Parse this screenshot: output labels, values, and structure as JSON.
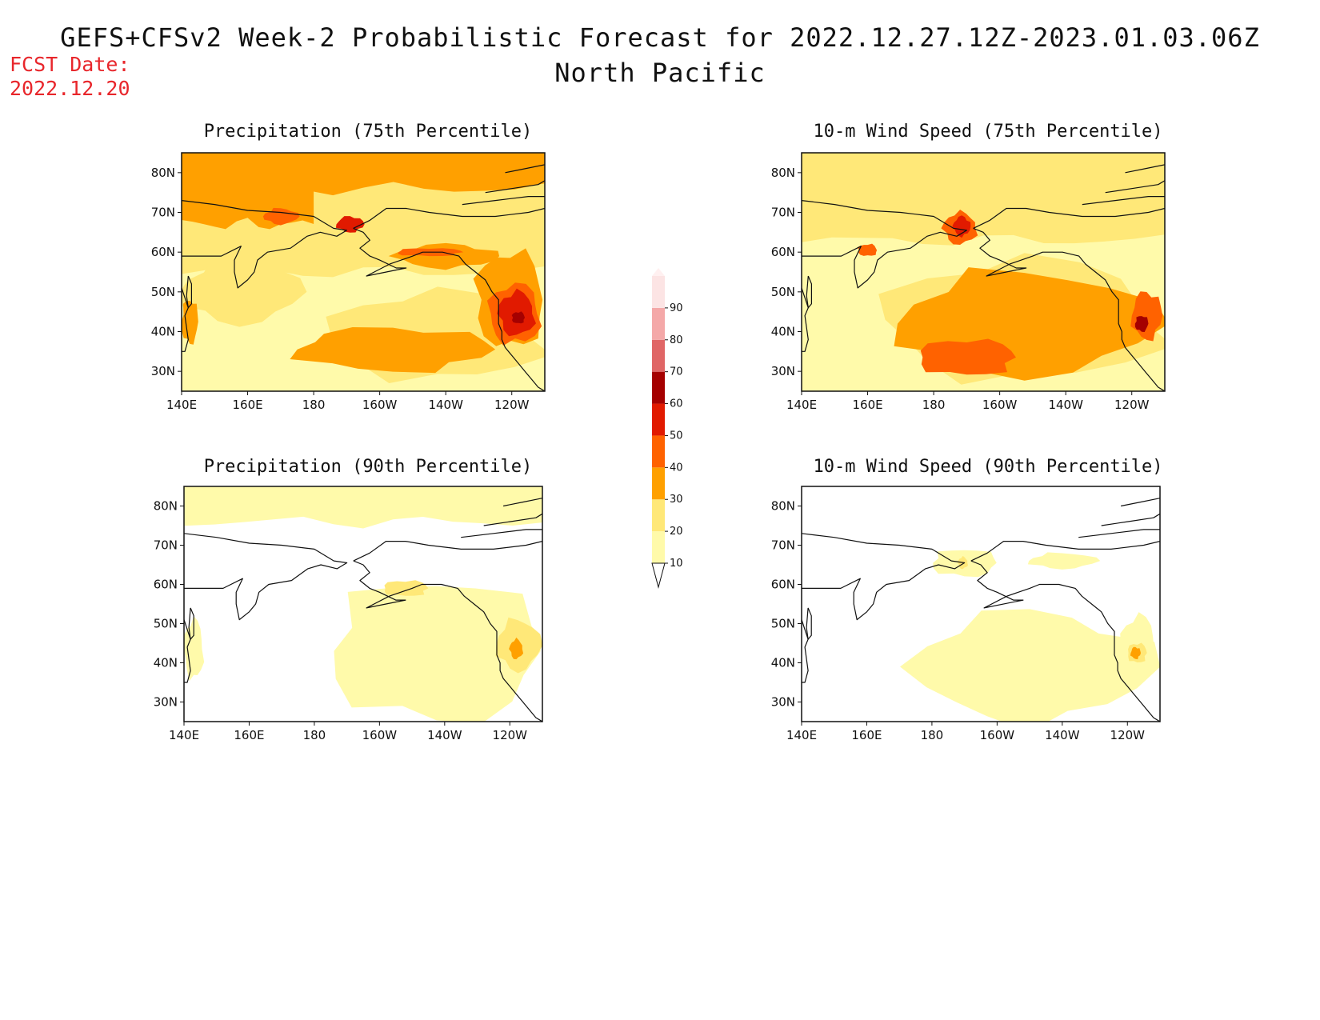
{
  "header": {
    "title": "GEFS+CFSv2 Week-2 Probabilistic Forecast for 2022.12.27.12Z-2023.01.03.06Z",
    "subtitle": "North Pacific",
    "fcst_label": "FCST Date:",
    "fcst_date": "2022.12.20"
  },
  "panels": [
    {
      "id": "precip75",
      "title": "Precipitation (75th Percentile)"
    },
    {
      "id": "wind75",
      "title": "10-m Wind Speed (75th Percentile)"
    },
    {
      "id": "precip90",
      "title": "Precipitation (90th Percentile)"
    },
    {
      "id": "wind90",
      "title": "10-m Wind Speed (90th Percentile)"
    }
  ],
  "axes": {
    "lon_ticks": [
      "140E",
      "160E",
      "180",
      "160W",
      "140W",
      "120W"
    ],
    "lat_ticks": [
      "80N",
      "70N",
      "60N",
      "50N",
      "40N",
      "30N"
    ],
    "lon_values": [
      140,
      160,
      180,
      200,
      220,
      240
    ],
    "lat_values": [
      80,
      70,
      60,
      50,
      40,
      30
    ],
    "lon_range": [
      140,
      250
    ],
    "lat_range": [
      25,
      85
    ]
  },
  "colorbar": {
    "levels": [
      "10",
      "20",
      "30",
      "40",
      "50",
      "60",
      "70",
      "80",
      "90"
    ],
    "colors": [
      "#fffaaa",
      "#ffe878",
      "#ffa000",
      "#ff6200",
      "#e11a00",
      "#a50000",
      "#e06666",
      "#f4a8a8",
      "#fce4e4"
    ]
  },
  "map_data": {
    "precip75": [
      {
        "level": 10,
        "shape": "base",
        "lon": [
          140,
          250
        ],
        "lat": [
          25,
          85
        ]
      },
      {
        "level": 20,
        "shape": "band",
        "lon": [
          140,
          250
        ],
        "lat": [
          55,
          85
        ]
      },
      {
        "level": 20,
        "shape": "blob",
        "lon": [
          185,
          250
        ],
        "lat": [
          28,
          50
        ]
      },
      {
        "level": 20,
        "shape": "blob",
        "lon": [
          140,
          175
        ],
        "lat": [
          42,
          58
        ]
      },
      {
        "level": 30,
        "shape": "band",
        "lon": [
          140,
          250
        ],
        "lat": [
          76,
          85
        ]
      },
      {
        "level": 30,
        "shape": "band",
        "lon": [
          140,
          180
        ],
        "lat": [
          67,
          78
        ]
      },
      {
        "level": 30,
        "shape": "blob",
        "lon": [
          175,
          233
        ],
        "lat": [
          30,
          41
        ]
      },
      {
        "level": 30,
        "shape": "blob",
        "lon": [
          229,
          250
        ],
        "lat": [
          36,
          60
        ]
      },
      {
        "level": 30,
        "shape": "blob",
        "lon": [
          205,
          235
        ],
        "lat": [
          56,
          62
        ]
      },
      {
        "level": 30,
        "shape": "blob",
        "lon": [
          140,
          145
        ],
        "lat": [
          37,
          48
        ]
      },
      {
        "level": 40,
        "shape": "blob",
        "lon": [
          233,
          249
        ],
        "lat": [
          37,
          52
        ]
      },
      {
        "level": 40,
        "shape": "blob",
        "lon": [
          165,
          175
        ],
        "lat": [
          67,
          71
        ]
      },
      {
        "level": 40,
        "shape": "blob",
        "lon": [
          205,
          225
        ],
        "lat": [
          59,
          61
        ]
      },
      {
        "level": 50,
        "shape": "blob",
        "lon": [
          236,
          247
        ],
        "lat": [
          39,
          50
        ]
      },
      {
        "level": 50,
        "shape": "blob",
        "lon": [
          187,
          195
        ],
        "lat": [
          65,
          69
        ]
      },
      {
        "level": 60,
        "shape": "blob",
        "lon": [
          240,
          244
        ],
        "lat": [
          42,
          45
        ]
      }
    ],
    "wind75": [
      {
        "level": 10,
        "shape": "base",
        "lon": [
          140,
          250
        ],
        "lat": [
          25,
          85
        ]
      },
      {
        "level": 20,
        "shape": "band",
        "lon": [
          140,
          250
        ],
        "lat": [
          63,
          85
        ]
      },
      {
        "level": 20,
        "shape": "blob",
        "lon": [
          165,
          250
        ],
        "lat": [
          28,
          58
        ]
      },
      {
        "level": 30,
        "shape": "blob",
        "lon": [
          170,
          245
        ],
        "lat": [
          29,
          55
        ]
      },
      {
        "level": 40,
        "shape": "blob",
        "lon": [
          175,
          205
        ],
        "lat": [
          29,
          38
        ]
      },
      {
        "level": 40,
        "shape": "blob",
        "lon": [
          183,
          193
        ],
        "lat": [
          62,
          70
        ]
      },
      {
        "level": 40,
        "shape": "blob",
        "lon": [
          240,
          249
        ],
        "lat": [
          38,
          50
        ]
      },
      {
        "level": 40,
        "shape": "blob",
        "lon": [
          157,
          163
        ],
        "lat": [
          59,
          62
        ]
      },
      {
        "level": 50,
        "shape": "blob",
        "lon": [
          186,
          191
        ],
        "lat": [
          64,
          69
        ]
      },
      {
        "level": 60,
        "shape": "blob",
        "lon": [
          241,
          245
        ],
        "lat": [
          40,
          44
        ]
      }
    ],
    "precip90": [
      {
        "level": 10,
        "shape": "band",
        "lon": [
          140,
          250
        ],
        "lat": [
          76,
          85
        ]
      },
      {
        "level": 10,
        "shape": "blob",
        "lon": [
          185,
          250
        ],
        "lat": [
          25,
          61
        ]
      },
      {
        "level": 10,
        "shape": "blob",
        "lon": [
          140,
          146
        ],
        "lat": [
          36,
          51
        ]
      },
      {
        "level": 20,
        "shape": "blob",
        "lon": [
          236,
          249
        ],
        "lat": [
          38,
          51
        ]
      },
      {
        "level": 20,
        "shape": "blob",
        "lon": [
          201,
          215
        ],
        "lat": [
          57,
          61
        ]
      },
      {
        "level": 30,
        "shape": "blob",
        "lon": [
          240,
          244
        ],
        "lat": [
          41,
          46
        ]
      }
    ],
    "wind90": [
      {
        "level": 10,
        "shape": "blob",
        "lon": [
          175,
          245
        ],
        "lat": [
          25,
          53
        ]
      },
      {
        "level": 10,
        "shape": "blob",
        "lon": [
          180,
          200
        ],
        "lat": [
          62,
          69
        ]
      },
      {
        "level": 10,
        "shape": "blob",
        "lon": [
          238,
          249
        ],
        "lat": [
          36,
          52
        ]
      },
      {
        "level": 10,
        "shape": "blob",
        "lon": [
          210,
          230
        ],
        "lat": [
          64,
          68
        ]
      },
      {
        "level": 20,
        "shape": "blob",
        "lon": [
          240,
          246
        ],
        "lat": [
          40,
          45
        ]
      },
      {
        "level": 20,
        "shape": "blob",
        "lon": [
          188,
          191
        ],
        "lat": [
          64,
          67
        ]
      },
      {
        "level": 30,
        "shape": "blob",
        "lon": [
          241,
          244
        ],
        "lat": [
          41,
          44
        ]
      }
    ]
  }
}
